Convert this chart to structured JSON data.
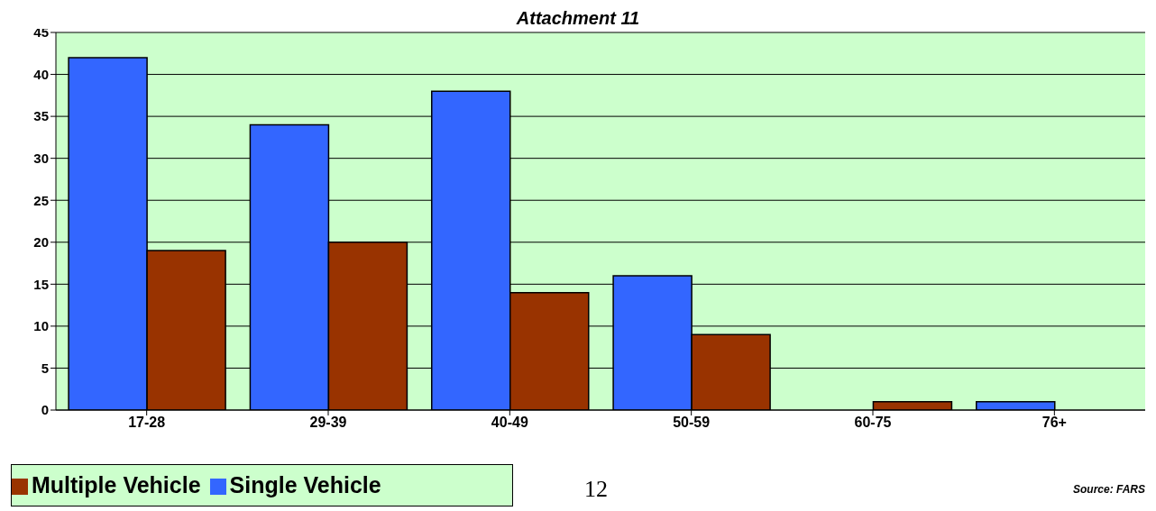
{
  "chart_data": {
    "type": "bar",
    "title": "Attachment 11",
    "categories": [
      "17-28",
      "29-39",
      "40-49",
      "50-59",
      "60-75",
      "76+"
    ],
    "series": [
      {
        "name": "Single Vehicle",
        "color": "#3366ff",
        "values": [
          42,
          34,
          38,
          16,
          0,
          1
        ]
      },
      {
        "name": "Multiple Vehicle",
        "color": "#993300",
        "values": [
          19,
          20,
          14,
          9,
          1,
          0
        ]
      }
    ],
    "ylim": [
      0,
      45
    ],
    "yticks": [
      0,
      5,
      10,
      15,
      20,
      25,
      30,
      35,
      40,
      45
    ],
    "grid": "y",
    "legend": "bottom left",
    "annotations": [
      "12",
      "Source: FARS"
    ]
  }
}
